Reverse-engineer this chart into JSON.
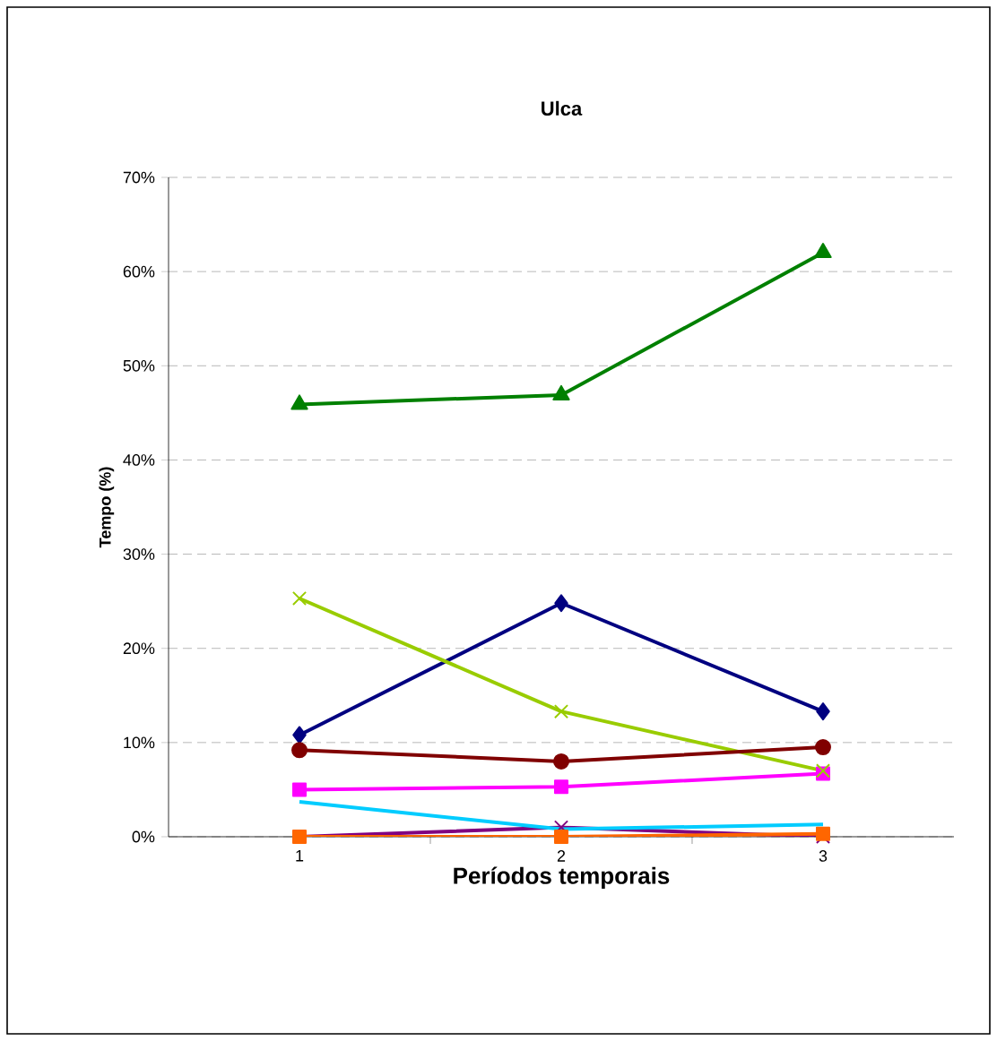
{
  "chart_data": {
    "type": "line",
    "title": "Ulca",
    "xlabel": "Períodos temporais",
    "ylabel": "Tempo (%)",
    "categories": [
      "1",
      "2",
      "3"
    ],
    "ylim": [
      0,
      70
    ],
    "yticks": [
      {
        "value": 0,
        "label": "0%"
      },
      {
        "value": 10,
        "label": "10%"
      },
      {
        "value": 20,
        "label": "20%"
      },
      {
        "value": 30,
        "label": "30%"
      },
      {
        "value": 40,
        "label": "40%"
      },
      {
        "value": 50,
        "label": "50%"
      },
      {
        "value": 60,
        "label": "60%"
      },
      {
        "value": 70,
        "label": "70%"
      }
    ],
    "grid": "y",
    "line_style": "solid",
    "series": [
      {
        "color": "#000080",
        "marker": "diamond",
        "values": [
          10.8,
          24.8,
          13.3
        ]
      },
      {
        "color": "#ff00ff",
        "marker": "square",
        "values": [
          5.0,
          5.3,
          6.7
        ]
      },
      {
        "color": "#008000",
        "marker": "triangle",
        "values": [
          45.9,
          46.9,
          62.0
        ]
      },
      {
        "color": "#99cc00",
        "marker": "cross",
        "values": [
          25.3,
          13.3,
          7.0
        ]
      },
      {
        "color": "#800080",
        "marker": "cross",
        "values": [
          0,
          1.0,
          0
        ]
      },
      {
        "color": "#800000",
        "marker": "circle",
        "values": [
          9.2,
          8.0,
          9.5
        ]
      },
      {
        "color": "#00ccff",
        "marker": "none",
        "values": [
          3.7,
          0.8,
          1.3
        ]
      },
      {
        "color": "#ff6600",
        "marker": "square",
        "values": [
          0,
          0,
          0.3
        ]
      }
    ]
  }
}
